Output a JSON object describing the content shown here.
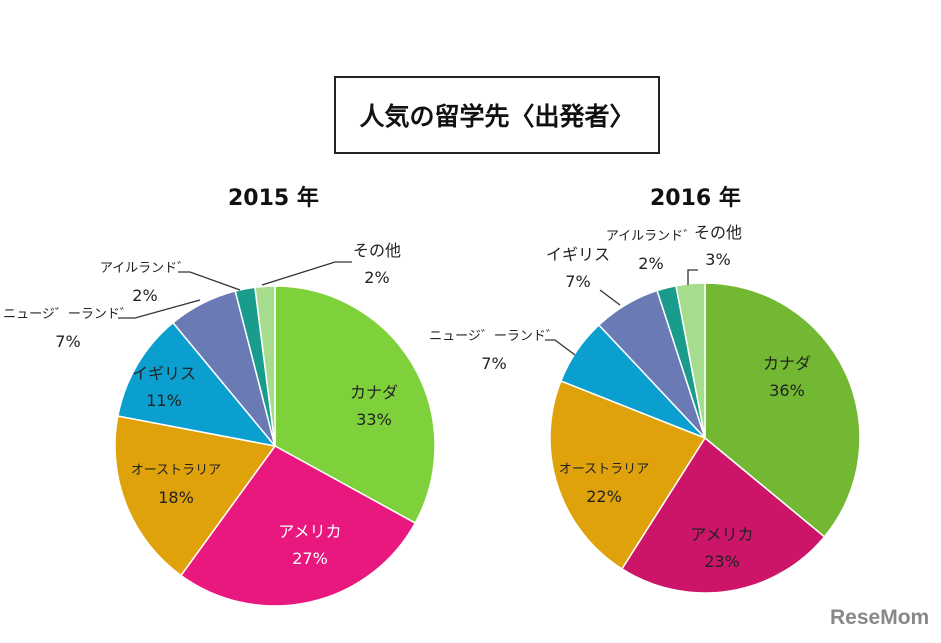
{
  "title": "人気の留学先〈出発者〉",
  "watermark": "ReseMom",
  "chart_data": [
    {
      "type": "pie",
      "title": "2015 年",
      "categories": [
        "カナダ",
        "アメリカ",
        "オーストラリア",
        "イギリス",
        "ニュージーランド",
        "アイルランド",
        "その他"
      ],
      "labels": [
        "カナダ",
        "アメリカ",
        "オーストラリア",
        "イギリス",
        "ニュージ゛ーランド゛",
        "アイルランド゛",
        "その他"
      ],
      "values": [
        33,
        27,
        18,
        11,
        7,
        2,
        2
      ],
      "value_labels": [
        "33%",
        "27%",
        "18%",
        "11%",
        "7%",
        "2%",
        "2%"
      ],
      "colors": [
        "#7fd13b",
        "#e8187e",
        "#e0a20a",
        "#0b9fcf",
        "#6a7ab5",
        "#1a9c8c",
        "#a6dc8e"
      ]
    },
    {
      "type": "pie",
      "title": "2016 年",
      "categories": [
        "カナダ",
        "アメリカ",
        "オーストラリア",
        "イギリス",
        "ニュージーランド",
        "アイルランド",
        "その他"
      ],
      "labels": [
        "カナダ",
        "アメリカ",
        "オーストラリア",
        "イギリス",
        "ニュージ゛ーランド゛",
        "アイルランド゛",
        "その他"
      ],
      "values": [
        36,
        23,
        22,
        7,
        7,
        2,
        3
      ],
      "value_labels": [
        "36%",
        "23%",
        "22%",
        "7%",
        "7%",
        "2%",
        "3%"
      ],
      "colors": [
        "#72b832",
        "#cc1568",
        "#e0a20a",
        "#0b9fcf",
        "#6a7ab5",
        "#1a9c8c",
        "#a6dc8e"
      ]
    }
  ]
}
